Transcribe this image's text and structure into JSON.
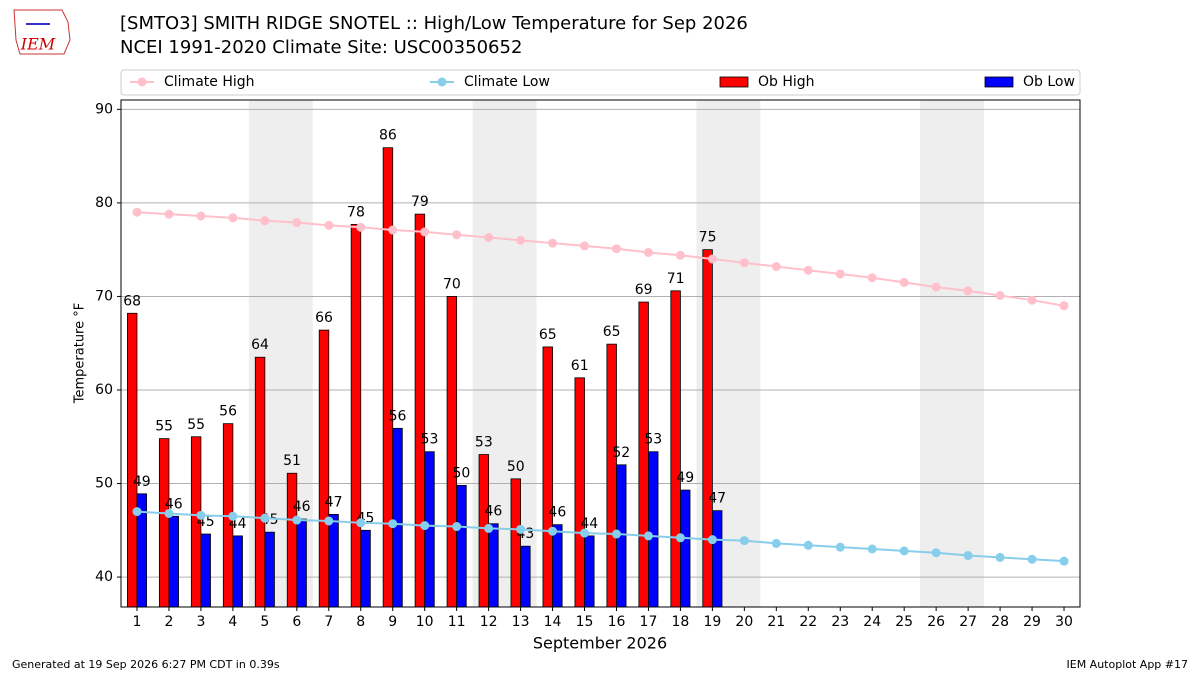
{
  "chart_data": {
    "type": "bar",
    "title": "[SMTO3] SMITH RIDGE SNOTEL :: High/Low Temperature for Sep 2026",
    "subtitle": "NCEI 1991-2020 Climate Site: USC00350652",
    "logo": "IEM",
    "xlabel": "September 2026",
    "ylabel": "Temperature °F",
    "generated": "Generated at 19 Sep 2026 6:27 PM CDT in 0.39s",
    "app": "IEM Autoplot App #17",
    "x": [
      1,
      2,
      3,
      4,
      5,
      6,
      7,
      8,
      9,
      10,
      11,
      12,
      13,
      14,
      15,
      16,
      17,
      18,
      19,
      20,
      21,
      22,
      23,
      24,
      25,
      26,
      27,
      28,
      29,
      30
    ],
    "xlim": [
      0.5,
      30.5
    ],
    "xticks": [
      1,
      2,
      3,
      4,
      5,
      6,
      7,
      8,
      9,
      10,
      11,
      12,
      13,
      14,
      15,
      16,
      17,
      18,
      19,
      20,
      21,
      22,
      23,
      24,
      25,
      26,
      27,
      28,
      29,
      30
    ],
    "ylim": [
      36.8,
      91.0
    ],
    "yticks": [
      40,
      50,
      60,
      70,
      80,
      90
    ],
    "grid": true,
    "shaded_spans": [
      [
        4.5,
        6.5
      ],
      [
        11.5,
        13.5
      ],
      [
        18.5,
        20.5
      ],
      [
        25.5,
        27.5
      ]
    ],
    "series": [
      {
        "name": "Climate High",
        "kind": "line",
        "color": "#ffc0cb",
        "values": [
          79.0,
          78.8,
          78.6,
          78.4,
          78.1,
          77.9,
          77.6,
          77.4,
          77.1,
          76.9,
          76.6,
          76.3,
          76.0,
          75.7,
          75.4,
          75.1,
          74.7,
          74.4,
          74.0,
          73.6,
          73.2,
          72.8,
          72.4,
          72.0,
          71.5,
          71.0,
          70.6,
          70.1,
          69.6,
          69.0
        ]
      },
      {
        "name": "Climate Low",
        "kind": "line",
        "color": "#87ceeb",
        "values": [
          47.0,
          46.8,
          46.6,
          46.5,
          46.3,
          46.1,
          46.0,
          45.8,
          45.7,
          45.5,
          45.4,
          45.2,
          45.1,
          44.9,
          44.7,
          44.6,
          44.4,
          44.2,
          44.0,
          43.9,
          43.6,
          43.4,
          43.2,
          43.0,
          42.8,
          42.6,
          42.3,
          42.1,
          41.9,
          41.7
        ]
      },
      {
        "name": "Ob High",
        "kind": "bar",
        "offset": -1,
        "color": "#ff0000",
        "values": [
          68.2,
          54.8,
          55.0,
          56.4,
          63.5,
          51.1,
          66.4,
          77.7,
          85.9,
          78.8,
          70.0,
          53.1,
          50.5,
          64.6,
          61.3,
          64.9,
          69.4,
          70.6,
          75.0,
          null,
          null,
          null,
          null,
          null,
          null,
          null,
          null,
          null,
          null,
          null
        ],
        "value_labels": [
          "68",
          "55",
          "55",
          "56",
          "64",
          "51",
          "66",
          "78",
          "86",
          "79",
          "70",
          "53",
          "50",
          "65",
          "61",
          "65",
          "69",
          "71",
          "75",
          null,
          null,
          null,
          null,
          null,
          null,
          null,
          null,
          null,
          null,
          null
        ]
      },
      {
        "name": "Ob Low",
        "kind": "bar",
        "offset": 0,
        "color": "#0000ff",
        "values": [
          48.9,
          46.5,
          44.6,
          44.4,
          44.8,
          46.2,
          46.7,
          45.0,
          55.9,
          53.4,
          49.8,
          45.7,
          43.3,
          45.6,
          44.4,
          52.0,
          53.4,
          49.3,
          47.1,
          null,
          null,
          null,
          null,
          null,
          null,
          null,
          null,
          null,
          null,
          null
        ],
        "value_labels": [
          "49",
          "46",
          "45",
          "44",
          "45",
          "46",
          "47",
          "45",
          "56",
          "53",
          "50",
          "46",
          "43",
          "46",
          "44",
          "52",
          "53",
          "49",
          "47",
          null,
          null,
          null,
          null,
          null,
          null,
          null,
          null,
          null,
          null,
          null
        ]
      }
    ]
  }
}
